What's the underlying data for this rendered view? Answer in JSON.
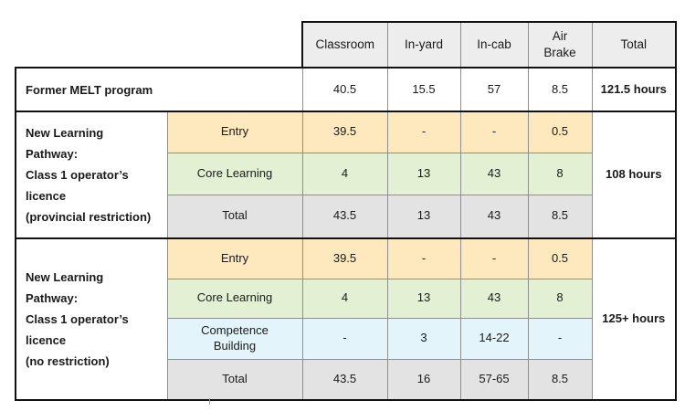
{
  "columns": [
    "Classroom",
    "In-yard",
    "In-cab",
    "Air\nBrake",
    "Total"
  ],
  "former": {
    "label": "Former MELT program",
    "values": [
      "40.5",
      "15.5",
      "57",
      "8.5"
    ],
    "total": "121.5 hours"
  },
  "restricted": {
    "label_lines": [
      "New Learning",
      "Pathway:",
      "Class 1 operator’s",
      "licence",
      "(provincial restriction)"
    ],
    "rows": [
      {
        "name": "Entry",
        "values": [
          "39.5",
          "-",
          "-",
          "0.5"
        ]
      },
      {
        "name": "Core Learning",
        "values": [
          "4",
          "13",
          "43",
          "8"
        ]
      },
      {
        "name": "Total",
        "values": [
          "43.5",
          "13",
          "43",
          "8.5"
        ]
      }
    ],
    "total": "108 hours"
  },
  "unrestricted": {
    "label_lines": [
      "New Learning",
      "Pathway:",
      "Class 1 operator’s",
      "licence",
      "(no restriction)"
    ],
    "rows": [
      {
        "name": "Entry",
        "values": [
          "39.5",
          "-",
          "-",
          "0.5"
        ]
      },
      {
        "name": "Core Learning",
        "values": [
          "4",
          "13",
          "43",
          "8"
        ]
      },
      {
        "name": "Competence\nBuilding",
        "values": [
          "-",
          "3",
          "14-22",
          "-"
        ]
      },
      {
        "name": "Total",
        "values": [
          "43.5",
          "16",
          "57-65",
          "8.5"
        ]
      }
    ],
    "total": "125+ hours"
  },
  "colors": {
    "entry": "#fde9bd",
    "core": "#e3f0d3",
    "competence": "#e3f5fb",
    "total": "#e4e3e3",
    "header": "#ededed",
    "border": "#111111"
  }
}
